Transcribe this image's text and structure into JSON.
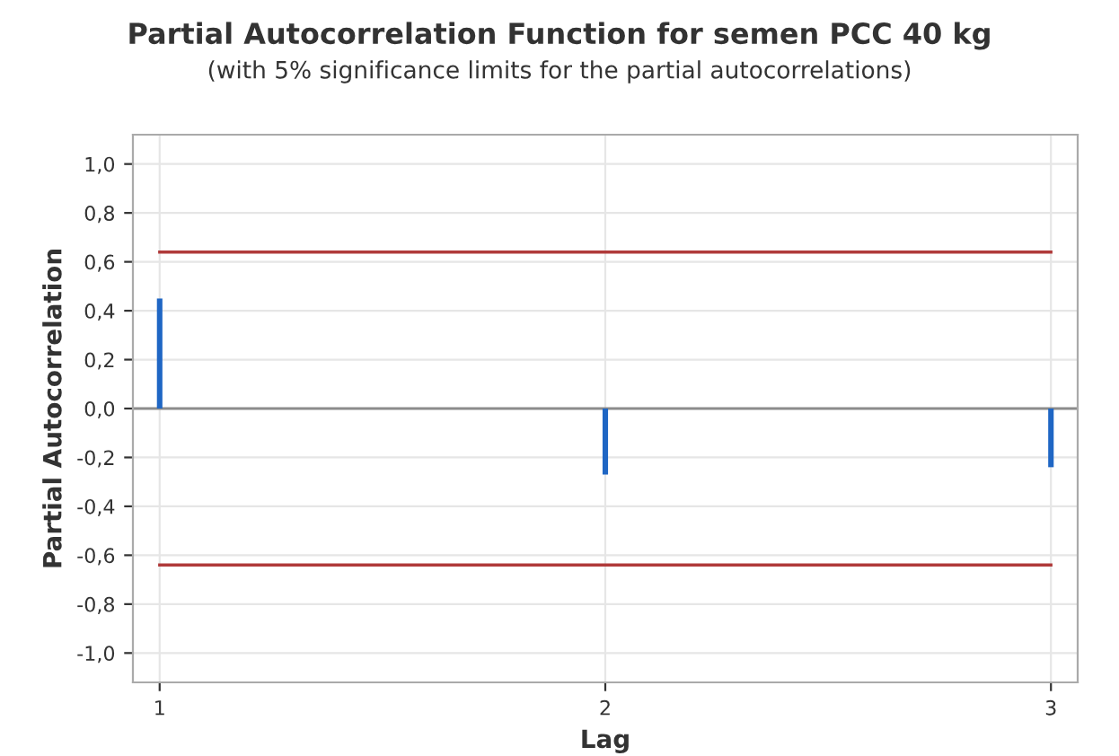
{
  "chart_data": {
    "type": "bar",
    "title": "Partial Autocorrelation Function for semen PCC 40 kg",
    "subtitle": "(with 5% significance limits for the partial autocorrelations)",
    "xlabel": "Lag",
    "ylabel": "Partial Autocorrelation",
    "x": [
      1,
      2,
      3
    ],
    "series": [
      {
        "color": "#1f66c4",
        "values": [
          0.45,
          -0.27,
          -0.24
        ]
      },
      {
        "type": "line",
        "color": "#b03a3a",
        "values": [
          0.64,
          0.64,
          0.64
        ]
      },
      {
        "type": "line",
        "color": "#b03a3a",
        "values": [
          -0.64,
          -0.64,
          -0.64
        ]
      }
    ],
    "ref_lines": [
      {
        "axis": "y",
        "value": 0,
        "color": "#8c8c8c"
      }
    ],
    "xlim": [
      0.94,
      3.06
    ],
    "xticks": [
      1,
      2,
      3
    ],
    "ylim": [
      -1.12,
      1.12
    ],
    "yticks": [
      {
        "value": -1.0,
        "label": "-1,0"
      },
      {
        "value": -0.8,
        "label": "-0,8"
      },
      {
        "value": -0.6,
        "label": "-0,6"
      },
      {
        "value": -0.4,
        "label": "-0,4"
      },
      {
        "value": -0.2,
        "label": "-0,2"
      },
      {
        "value": 0.0,
        "label": "0,0"
      },
      {
        "value": 0.2,
        "label": "0,2"
      },
      {
        "value": 0.4,
        "label": "0,4"
      },
      {
        "value": 0.6,
        "label": "0,6"
      },
      {
        "value": 0.8,
        "label": "0,8"
      },
      {
        "value": 1.0,
        "label": "1,0"
      }
    ],
    "grid": true,
    "marker": "none",
    "line_style": "solid"
  }
}
